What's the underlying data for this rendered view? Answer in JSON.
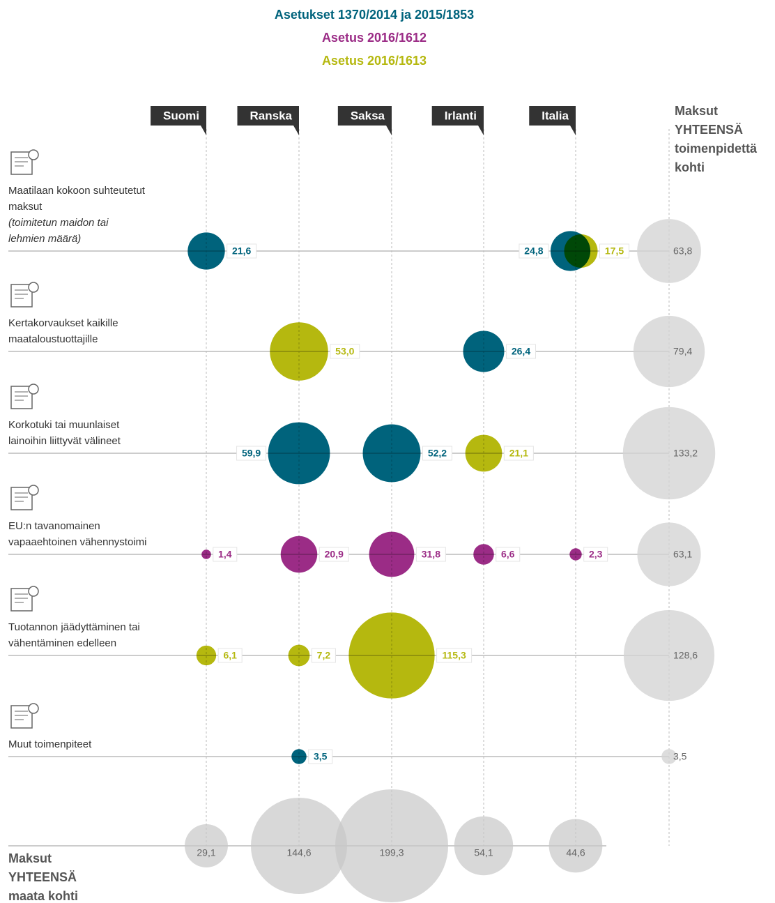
{
  "chart_data": {
    "type": "bubble",
    "series": [
      {
        "name": "Asetukset 1370/2014  ja 2015/1853",
        "color": "#00637c"
      },
      {
        "name": "Asetus 2016/1612",
        "color": "#9b2c86"
      },
      {
        "name": "Asetus 2016/1613",
        "color": "#b5b80f"
      }
    ],
    "columns": [
      "Suomi",
      "Ranska",
      "Saksa",
      "Irlanti",
      "Italia"
    ],
    "row_total_title": "Maksut YHTEENSÄ toimenpidettä kohti",
    "column_total_title": "Maksut YHTEENSÄ maata kohti",
    "rows": [
      {
        "label": "Maatilaan kokoon suhteutetut maksut",
        "note": "(toimitetun maidon tai lehmien määrä)",
        "bubbles": [
          {
            "column": 0,
            "series": 0,
            "value": 21.6,
            "value_label": "21,6"
          },
          {
            "column": 4,
            "series": 0,
            "value": 24.8,
            "value_label": "24,8"
          },
          {
            "column": 4,
            "series": 2,
            "value": 17.5,
            "value_label": "17,5"
          }
        ],
        "total": 63.8,
        "total_label": "63,8"
      },
      {
        "label": "Kertakorvaukset kaikille maataloustuottajille",
        "bubbles": [
          {
            "column": 1,
            "series": 2,
            "value": 53.0,
            "value_label": "53,0"
          },
          {
            "column": 3,
            "series": 0,
            "value": 26.4,
            "value_label": "26,4"
          }
        ],
        "total": 79.4,
        "total_label": "79,4"
      },
      {
        "label": "Korkotuki tai muunlaiset lainoihin liittyvät välineet",
        "bubbles": [
          {
            "column": 1,
            "series": 0,
            "value": 59.9,
            "value_label": "59,9"
          },
          {
            "column": 2,
            "series": 0,
            "value": 52.2,
            "value_label": "52,2"
          },
          {
            "column": 3,
            "series": 2,
            "value": 21.1,
            "value_label": "21,1"
          }
        ],
        "total": 133.2,
        "total_label": "133,2"
      },
      {
        "label": "EU:n tavanomainen vapaaehtoinen vähennystoimi",
        "bubbles": [
          {
            "column": 0,
            "series": 1,
            "value": 1.4,
            "value_label": "1,4"
          },
          {
            "column": 1,
            "series": 1,
            "value": 20.9,
            "value_label": "20,9"
          },
          {
            "column": 2,
            "series": 1,
            "value": 31.8,
            "value_label": "31,8"
          },
          {
            "column": 3,
            "series": 1,
            "value": 6.6,
            "value_label": "6,6"
          },
          {
            "column": 4,
            "series": 1,
            "value": 2.3,
            "value_label": "2,3"
          }
        ],
        "total": 63.1,
        "total_label": "63,1"
      },
      {
        "label": "Tuotannon jäädyttäminen tai vähentäminen edelleen",
        "bubbles": [
          {
            "column": 0,
            "series": 2,
            "value": 6.1,
            "value_label": "6,1"
          },
          {
            "column": 1,
            "series": 2,
            "value": 7.2,
            "value_label": "7,2"
          },
          {
            "column": 2,
            "series": 2,
            "value": 115.3,
            "value_label": "115,3"
          }
        ],
        "total": 128.6,
        "total_label": "128,6"
      },
      {
        "label": "Muut toimenpiteet",
        "bubbles": [
          {
            "column": 1,
            "series": 0,
            "value": 3.5,
            "value_label": "3,5"
          }
        ],
        "total": 3.5,
        "total_label": "3,5"
      }
    ],
    "column_totals": [
      29.1,
      144.6,
      199.3,
      54.1,
      44.6
    ],
    "column_total_labels": [
      "29,1",
      "144,6",
      "199,3",
      "54,1",
      "44,6"
    ]
  }
}
